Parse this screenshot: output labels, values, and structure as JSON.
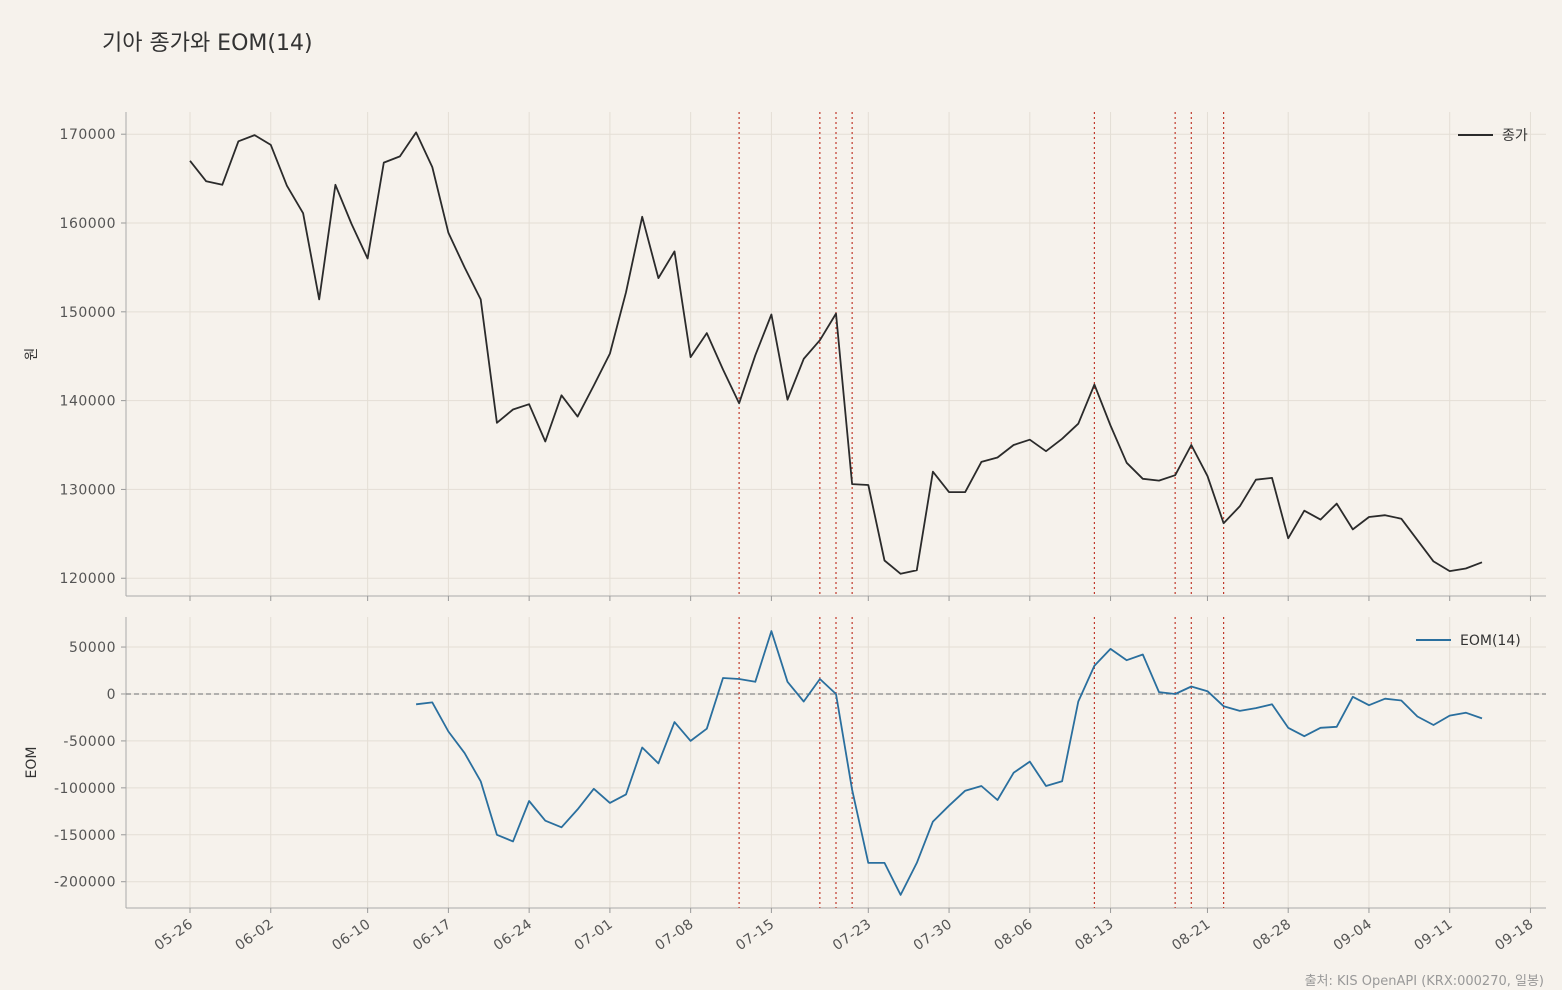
{
  "title": "기아 종가와 EOM(14)",
  "source": "출처: KIS OpenAPI (KRX:000270, 일봉)",
  "colors": {
    "background": "#f6f2ec",
    "close": "#2b2b2b",
    "eom": "#2a6f9e",
    "signal": "#c0392b",
    "zero": "#888888",
    "grid": "#e4ded5"
  },
  "chart_data": [
    {
      "type": "line",
      "ylabel": "원",
      "ylim": [
        118000,
        172500
      ],
      "yticks": [
        120000,
        130000,
        140000,
        150000,
        160000,
        170000
      ],
      "legend": "top-right",
      "grid": true,
      "series": [
        {
          "name": "종가",
          "values": [
            167000,
            164700,
            164300,
            169200,
            169900,
            168800,
            164200,
            161100,
            151400,
            164300,
            159900,
            156000,
            166800,
            167500,
            170200,
            166300,
            158900,
            155000,
            151400,
            137500,
            139000,
            139600,
            135400,
            140600,
            138200,
            141700,
            145300,
            152200,
            160700,
            153800,
            156800,
            144900,
            147600,
            143500,
            139700,
            145100,
            149700,
            140100,
            144700,
            146800,
            149800,
            130600,
            130500,
            122000,
            120500,
            120900,
            132000,
            129700,
            129700,
            133100,
            133600,
            135000,
            135600,
            134300,
            135700,
            137400,
            141800,
            137200,
            133000,
            131200,
            131000,
            131600,
            135000,
            131500,
            126200,
            128100,
            131100,
            131300,
            124500,
            127600,
            126600,
            128400,
            125500,
            126900,
            127100,
            126700,
            124300,
            121900,
            120800,
            121100,
            121800
          ]
        }
      ]
    },
    {
      "type": "line",
      "ylabel": "EOM",
      "ylim": [
        -228000,
        82000
      ],
      "yticks": [
        -200000,
        -150000,
        -100000,
        -50000,
        0,
        50000
      ],
      "legend": "top-right",
      "grid": true,
      "zero_line": true,
      "series": [
        {
          "name": "EOM(14)",
          "start_index": 14,
          "values": [
            -11000,
            -9000,
            -40000,
            -63000,
            -93000,
            -150000,
            -157000,
            -114000,
            -135000,
            -142000,
            -123000,
            -101000,
            -116000,
            -107000,
            -57000,
            -74000,
            -30000,
            -50000,
            -37000,
            17000,
            16000,
            13000,
            67000,
            13000,
            -8000,
            16000,
            0,
            -102000,
            -180000,
            -180000,
            -214000,
            -180000,
            -136000,
            -119000,
            -103000,
            -98000,
            -113000,
            -84000,
            -72000,
            -98000,
            -93000,
            -8000,
            30000,
            48000,
            36000,
            42000,
            2000,
            0,
            8000,
            3000,
            -13000,
            -18000,
            -15000,
            -11000,
            -36000,
            -45000,
            -36000,
            -35000,
            -3000,
            -12000,
            -5000,
            -7000,
            -24000,
            -33000,
            -23000,
            -20000,
            -26000
          ]
        }
      ]
    }
  ],
  "x_dates": [
    "05-26",
    "05-27",
    "05-28",
    "05-29",
    "05-30",
    "06-02",
    "06-03",
    "06-04",
    "06-05",
    "06-06",
    "06-09",
    "06-10",
    "06-11",
    "06-12",
    "06-13",
    "06-16",
    "06-17",
    "06-18",
    "06-19",
    "06-20",
    "06-23",
    "06-24",
    "06-25",
    "06-26",
    "06-27",
    "06-30",
    "07-01",
    "07-02",
    "07-03",
    "07-04",
    "07-07",
    "07-08",
    "07-09",
    "07-10",
    "07-11",
    "07-14",
    "07-15",
    "07-16",
    "07-17",
    "07-18",
    "07-21",
    "07-22",
    "07-23",
    "07-24",
    "07-25",
    "07-28",
    "07-29",
    "07-30",
    "07-31",
    "08-01",
    "08-04",
    "08-05",
    "08-06",
    "08-07",
    "08-08",
    "08-11",
    "08-12",
    "08-13",
    "08-14",
    "08-15",
    "08-18",
    "08-19",
    "08-20",
    "08-21",
    "08-22",
    "08-25",
    "08-26",
    "08-27",
    "08-28",
    "08-29",
    "09-01",
    "09-02",
    "09-03",
    "09-04",
    "09-05",
    "09-08",
    "09-09",
    "09-10",
    "09-11",
    "09-12",
    "09-15"
  ],
  "x_tick_labels": [
    "05-26",
    "06-02",
    "06-10",
    "06-17",
    "06-24",
    "07-01",
    "07-08",
    "07-15",
    "07-23",
    "07-30",
    "08-06",
    "08-13",
    "08-21",
    "08-28",
    "09-04",
    "09-11",
    "09-18"
  ],
  "signal_dates": [
    "07-11",
    "07-18",
    "07-21",
    "07-22",
    "08-12",
    "08-19",
    "08-20",
    "08-22"
  ]
}
